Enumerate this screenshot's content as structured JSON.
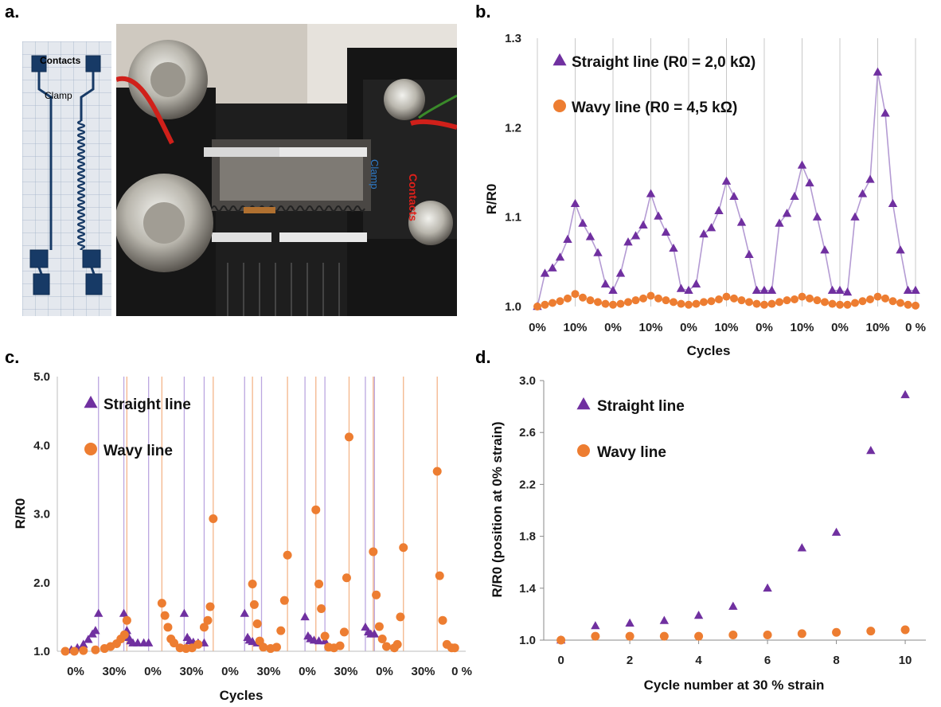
{
  "panel_labels": {
    "a": "a.",
    "b": "b.",
    "c": "c.",
    "d": "d."
  },
  "photo_labels": {
    "contacts": "Contacts",
    "clamp": "Clamp",
    "contacts_rig": "Contacts",
    "clamp_rig": "Clamp"
  },
  "colors": {
    "straight": "#7030A0",
    "wavy": "#ED7D31",
    "straight_line": "#B49BD3",
    "wavy_line": "#F6BE95",
    "contacts": "#E0201A",
    "clamp": "#2F7BC8"
  },
  "chart_data": [
    {
      "id": "b",
      "type": "line",
      "title": "",
      "xlabel": "Cycles",
      "ylabel": "R/R0",
      "ylim": [
        1.0,
        1.3
      ],
      "yticks": [
        "1.0",
        "1.1",
        "1.2",
        "1.3"
      ],
      "xtick_labels": [
        "0%",
        "10%",
        "0%",
        "10%",
        "0%",
        "10%",
        "0%",
        "10%",
        "0%",
        "10%",
        "0 %"
      ],
      "grid": "vertical",
      "legend_placement": "top-left",
      "series": [
        {
          "name": "Straight line (R0 = 2,0 kΩ)",
          "marker": "triangle",
          "values": [
            1.0,
            1.037,
            1.043,
            1.055,
            1.075,
            1.115,
            1.093,
            1.078,
            1.06,
            1.025,
            1.018,
            1.037,
            1.072,
            1.079,
            1.091,
            1.126,
            1.101,
            1.083,
            1.065,
            1.02,
            1.018,
            1.025,
            1.081,
            1.088,
            1.107,
            1.14,
            1.123,
            1.094,
            1.058,
            1.018,
            1.018,
            1.018,
            1.093,
            1.104,
            1.123,
            1.158,
            1.138,
            1.1,
            1.063,
            1.018,
            1.018,
            1.016,
            1.1,
            1.126,
            1.142,
            1.262,
            1.216,
            1.115,
            1.063,
            1.018,
            1.018
          ]
        },
        {
          "name": "Wavy line (R0 = 4,5 kΩ)",
          "marker": "circle",
          "values": [
            1.0,
            1.002,
            1.004,
            1.006,
            1.009,
            1.014,
            1.01,
            1.007,
            1.005,
            1.003,
            1.002,
            1.003,
            1.005,
            1.007,
            1.009,
            1.012,
            1.009,
            1.007,
            1.005,
            1.003,
            1.002,
            1.003,
            1.005,
            1.006,
            1.008,
            1.011,
            1.009,
            1.007,
            1.005,
            1.003,
            1.002,
            1.003,
            1.005,
            1.007,
            1.008,
            1.011,
            1.009,
            1.007,
            1.005,
            1.003,
            1.002,
            1.002,
            1.004,
            1.006,
            1.008,
            1.011,
            1.009,
            1.006,
            1.004,
            1.002,
            1.001
          ]
        }
      ]
    },
    {
      "id": "c",
      "type": "line",
      "title": "",
      "xlabel": "Cycles",
      "ylabel": "R/R0",
      "ylim": [
        1.0,
        5.0
      ],
      "yticks": [
        "1.0",
        "2.0",
        "3.0",
        "4.0",
        "5.0"
      ],
      "xtick_labels": [
        "0%",
        "30%",
        "0%",
        "30%",
        "0%",
        "30%",
        "0%",
        "30%",
        "0%",
        "30%",
        "0 %"
      ],
      "grid": "vertical",
      "legend_placement": "top-left",
      "series": [
        {
          "name": "Straight line",
          "marker": "triangle",
          "points": [
            [
              0.1,
              1.02
            ],
            [
              0.2,
              1.05
            ],
            [
              0.3,
              1.1
            ],
            [
              0.38,
              1.17
            ],
            [
              0.45,
              1.25
            ],
            [
              0.5,
              1.3
            ],
            [
              0.55,
              1.55
            ],
            [
              0.97,
              1.55
            ],
            [
              1.02,
              1.3
            ],
            [
              1.05,
              1.2
            ],
            [
              1.08,
              1.15
            ],
            [
              1.12,
              1.12
            ],
            [
              1.2,
              1.12
            ],
            [
              1.3,
              1.12
            ],
            [
              1.38,
              1.12
            ],
            [
              1.97,
              1.55
            ],
            [
              2.02,
              1.2
            ],
            [
              2.06,
              1.15
            ],
            [
              2.12,
              1.13
            ],
            [
              2.2,
              1.12
            ],
            [
              2.3,
              1.12
            ],
            [
              2.97,
              1.55
            ],
            [
              3.02,
              1.2
            ],
            [
              3.05,
              1.16
            ],
            [
              3.1,
              1.14
            ],
            [
              3.18,
              1.12
            ],
            [
              3.25,
              1.12
            ],
            [
              3.97,
              1.5
            ],
            [
              4.02,
              1.22
            ],
            [
              4.06,
              1.18
            ],
            [
              4.12,
              1.16
            ],
            [
              4.2,
              1.15
            ],
            [
              4.3,
              1.15
            ],
            [
              4.97,
              1.35
            ],
            [
              5.02,
              1.28
            ],
            [
              5.06,
              1.25
            ],
            [
              5.12,
              1.25
            ]
          ]
        },
        {
          "name": "Wavy line",
          "marker": "circle",
          "points": [
            [
              0.0,
              1.0
            ],
            [
              0.15,
              1.0
            ],
            [
              0.3,
              1.01
            ],
            [
              0.5,
              1.02
            ],
            [
              0.65,
              1.04
            ],
            [
              0.75,
              1.07
            ],
            [
              0.85,
              1.11
            ],
            [
              0.92,
              1.18
            ],
            [
              0.98,
              1.24
            ],
            [
              1.02,
              1.45
            ],
            [
              1.6,
              1.7
            ],
            [
              1.65,
              1.52
            ],
            [
              1.7,
              1.35
            ],
            [
              1.75,
              1.18
            ],
            [
              1.8,
              1.12
            ],
            [
              1.9,
              1.05
            ],
            [
              2.0,
              1.04
            ],
            [
              2.1,
              1.05
            ],
            [
              2.2,
              1.1
            ],
            [
              2.3,
              1.35
            ],
            [
              2.36,
              1.45
            ],
            [
              2.4,
              1.65
            ],
            [
              2.45,
              2.93
            ],
            [
              3.1,
              1.98
            ],
            [
              3.13,
              1.68
            ],
            [
              3.18,
              1.4
            ],
            [
              3.22,
              1.15
            ],
            [
              3.28,
              1.06
            ],
            [
              3.4,
              1.04
            ],
            [
              3.5,
              1.06
            ],
            [
              3.57,
              1.3
            ],
            [
              3.63,
              1.74
            ],
            [
              3.68,
              2.4
            ],
            [
              4.15,
              3.06
            ],
            [
              4.2,
              1.98
            ],
            [
              4.24,
              1.62
            ],
            [
              4.3,
              1.22
            ],
            [
              4.36,
              1.06
            ],
            [
              4.45,
              1.05
            ],
            [
              4.55,
              1.08
            ],
            [
              4.62,
              1.28
            ],
            [
              4.66,
              2.07
            ],
            [
              4.7,
              4.12
            ],
            [
              5.1,
              2.45
            ],
            [
              5.15,
              1.82
            ],
            [
              5.2,
              1.36
            ],
            [
              5.25,
              1.18
            ],
            [
              5.32,
              1.07
            ],
            [
              5.45,
              1.05
            ],
            [
              5.5,
              1.1
            ],
            [
              5.55,
              1.5
            ],
            [
              5.6,
              2.51
            ],
            [
              6.16,
              3.62
            ],
            [
              6.2,
              2.1
            ],
            [
              6.25,
              1.45
            ],
            [
              6.32,
              1.1
            ],
            [
              6.4,
              1.05
            ],
            [
              6.45,
              1.05
            ]
          ]
        }
      ]
    },
    {
      "id": "d",
      "type": "scatter",
      "title": "",
      "xlabel": "Cycle number at 30 % strain",
      "ylabel": "R/R0 (position at 0% strain)",
      "xlim": [
        -0.5,
        10.6
      ],
      "ylim": [
        1.0,
        3.0
      ],
      "xticks": [
        "0",
        "2",
        "4",
        "6",
        "8",
        "10"
      ],
      "yticks": [
        "1.0",
        "1.4",
        "1.8",
        "2.2",
        "2.6",
        "3.0"
      ],
      "grid": "none",
      "legend_placement": "top-left",
      "x": [
        0,
        1,
        2,
        3,
        4,
        5,
        6,
        7,
        8,
        9,
        10
      ],
      "series": [
        {
          "name": "Straight line",
          "marker": "triangle",
          "values": [
            1.0,
            1.11,
            1.13,
            1.15,
            1.19,
            1.26,
            1.4,
            1.71,
            1.83,
            2.46,
            2.89
          ]
        },
        {
          "name": "Wavy line",
          "marker": "circle",
          "values": [
            1.0,
            1.03,
            1.03,
            1.03,
            1.03,
            1.04,
            1.04,
            1.05,
            1.06,
            1.07,
            1.08
          ]
        }
      ]
    }
  ]
}
